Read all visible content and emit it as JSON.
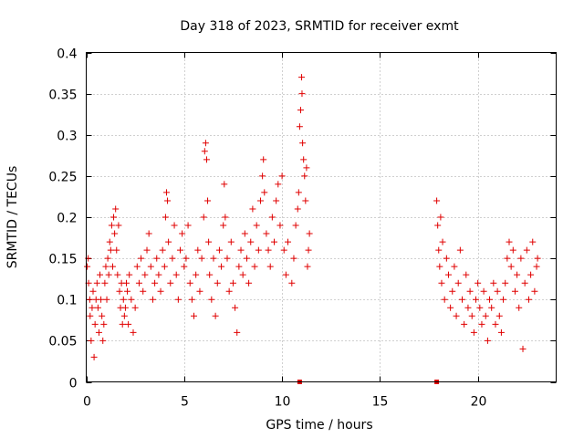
{
  "chart_data": {
    "type": "scatter",
    "title": "Day 318 of 2023, SRMTID for receiver exmt",
    "xlabel": "GPS time / hours",
    "ylabel": "SRMTID / TECUs",
    "xlim": [
      0,
      24
    ],
    "ylim": [
      0,
      0.4
    ],
    "x_ticks": [
      0,
      5,
      10,
      15,
      20
    ],
    "x_tick_labels": [
      "0",
      "5",
      "10",
      "15",
      "20"
    ],
    "y_ticks": [
      0,
      0.05,
      0.1,
      0.15,
      0.2,
      0.25,
      0.3,
      0.35,
      0.4
    ],
    "y_tick_labels": [
      "0",
      "0.05",
      "0.1",
      "0.15",
      "0.2",
      "0.25",
      "0.3",
      "0.35",
      "0.4"
    ],
    "grid": true,
    "marker": "+",
    "marker_color": "#e00000",
    "series": [
      {
        "name": "SRMTID",
        "marker": "+",
        "points": [
          [
            0.05,
            0.14
          ],
          [
            0.1,
            0.15
          ],
          [
            0.12,
            0.12
          ],
          [
            0.18,
            0.1
          ],
          [
            0.2,
            0.08
          ],
          [
            0.25,
            0.05
          ],
          [
            0.3,
            0.09
          ],
          [
            0.35,
            0.11
          ],
          [
            0.4,
            0.03
          ],
          [
            0.45,
            0.07
          ],
          [
            0.5,
            0.1
          ],
          [
            0.55,
            0.12
          ],
          [
            0.6,
            0.09
          ],
          [
            0.65,
            0.06
          ],
          [
            0.7,
            0.13
          ],
          [
            0.75,
            0.1
          ],
          [
            0.8,
            0.08
          ],
          [
            0.85,
            0.05
          ],
          [
            0.9,
            0.07
          ],
          [
            0.95,
            0.12
          ],
          [
            1.0,
            0.14
          ],
          [
            1.05,
            0.1
          ],
          [
            1.1,
            0.15
          ],
          [
            1.15,
            0.13
          ],
          [
            1.2,
            0.17
          ],
          [
            1.25,
            0.16
          ],
          [
            1.3,
            0.19
          ],
          [
            1.35,
            0.14
          ],
          [
            1.4,
            0.2
          ],
          [
            1.45,
            0.18
          ],
          [
            1.5,
            0.21
          ],
          [
            1.55,
            0.16
          ],
          [
            1.6,
            0.13
          ],
          [
            1.65,
            0.19
          ],
          [
            1.7,
            0.11
          ],
          [
            1.75,
            0.09
          ],
          [
            1.8,
            0.12
          ],
          [
            1.85,
            0.07
          ],
          [
            1.9,
            0.1
          ],
          [
            1.95,
            0.08
          ],
          [
            2.0,
            0.09
          ],
          [
            2.05,
            0.12
          ],
          [
            2.1,
            0.11
          ],
          [
            2.15,
            0.07
          ],
          [
            2.2,
            0.13
          ],
          [
            2.3,
            0.1
          ],
          [
            2.4,
            0.06
          ],
          [
            2.5,
            0.09
          ],
          [
            2.6,
            0.14
          ],
          [
            2.7,
            0.12
          ],
          [
            2.8,
            0.15
          ],
          [
            2.9,
            0.11
          ],
          [
            3.0,
            0.13
          ],
          [
            3.1,
            0.16
          ],
          [
            3.2,
            0.18
          ],
          [
            3.3,
            0.14
          ],
          [
            3.4,
            0.1
          ],
          [
            3.5,
            0.12
          ],
          [
            3.6,
            0.15
          ],
          [
            3.7,
            0.13
          ],
          [
            3.8,
            0.11
          ],
          [
            3.9,
            0.16
          ],
          [
            4.0,
            0.14
          ],
          [
            4.05,
            0.2
          ],
          [
            4.1,
            0.23
          ],
          [
            4.15,
            0.22
          ],
          [
            4.2,
            0.17
          ],
          [
            4.3,
            0.12
          ],
          [
            4.4,
            0.15
          ],
          [
            4.5,
            0.19
          ],
          [
            4.6,
            0.13
          ],
          [
            4.7,
            0.1
          ],
          [
            4.8,
            0.16
          ],
          [
            4.9,
            0.18
          ],
          [
            5.0,
            0.14
          ],
          [
            5.1,
            0.15
          ],
          [
            5.2,
            0.19
          ],
          [
            5.3,
            0.12
          ],
          [
            5.4,
            0.1
          ],
          [
            5.5,
            0.08
          ],
          [
            5.6,
            0.13
          ],
          [
            5.7,
            0.16
          ],
          [
            5.8,
            0.11
          ],
          [
            5.9,
            0.15
          ],
          [
            6.0,
            0.2
          ],
          [
            6.05,
            0.28
          ],
          [
            6.1,
            0.29
          ],
          [
            6.15,
            0.27
          ],
          [
            6.2,
            0.22
          ],
          [
            6.25,
            0.17
          ],
          [
            6.3,
            0.13
          ],
          [
            6.4,
            0.1
          ],
          [
            6.5,
            0.15
          ],
          [
            6.6,
            0.08
          ],
          [
            6.7,
            0.12
          ],
          [
            6.8,
            0.16
          ],
          [
            6.9,
            0.14
          ],
          [
            7.0,
            0.19
          ],
          [
            7.05,
            0.24
          ],
          [
            7.1,
            0.2
          ],
          [
            7.2,
            0.15
          ],
          [
            7.3,
            0.11
          ],
          [
            7.4,
            0.17
          ],
          [
            7.5,
            0.12
          ],
          [
            7.6,
            0.09
          ],
          [
            7.7,
            0.06
          ],
          [
            7.8,
            0.14
          ],
          [
            7.9,
            0.16
          ],
          [
            8.0,
            0.13
          ],
          [
            8.1,
            0.18
          ],
          [
            8.2,
            0.15
          ],
          [
            8.3,
            0.12
          ],
          [
            8.4,
            0.17
          ],
          [
            8.5,
            0.21
          ],
          [
            8.6,
            0.14
          ],
          [
            8.7,
            0.19
          ],
          [
            8.8,
            0.16
          ],
          [
            8.9,
            0.22
          ],
          [
            9.0,
            0.25
          ],
          [
            9.05,
            0.27
          ],
          [
            9.1,
            0.23
          ],
          [
            9.2,
            0.18
          ],
          [
            9.3,
            0.16
          ],
          [
            9.4,
            0.14
          ],
          [
            9.5,
            0.2
          ],
          [
            9.6,
            0.17
          ],
          [
            9.7,
            0.22
          ],
          [
            9.8,
            0.24
          ],
          [
            9.9,
            0.19
          ],
          [
            10.0,
            0.25
          ],
          [
            10.1,
            0.16
          ],
          [
            10.2,
            0.13
          ],
          [
            10.3,
            0.17
          ],
          [
            10.5,
            0.12
          ],
          [
            10.6,
            0.15
          ],
          [
            10.7,
            0.19
          ],
          [
            10.8,
            0.21
          ],
          [
            10.85,
            0.23
          ],
          [
            10.9,
            0.31
          ],
          [
            10.95,
            0.33
          ],
          [
            11.0,
            0.37
          ],
          [
            11.02,
            0.35
          ],
          [
            11.05,
            0.29
          ],
          [
            11.1,
            0.27
          ],
          [
            11.15,
            0.25
          ],
          [
            11.2,
            0.22
          ],
          [
            11.25,
            0.26
          ],
          [
            11.3,
            0.14
          ],
          [
            11.35,
            0.16
          ],
          [
            11.4,
            0.18
          ],
          [
            17.9,
            0.22
          ],
          [
            17.95,
            0.19
          ],
          [
            18.0,
            0.16
          ],
          [
            18.05,
            0.14
          ],
          [
            18.1,
            0.2
          ],
          [
            18.15,
            0.12
          ],
          [
            18.2,
            0.17
          ],
          [
            18.3,
            0.1
          ],
          [
            18.4,
            0.15
          ],
          [
            18.5,
            0.13
          ],
          [
            18.6,
            0.09
          ],
          [
            18.7,
            0.11
          ],
          [
            18.8,
            0.14
          ],
          [
            18.9,
            0.08
          ],
          [
            19.0,
            0.12
          ],
          [
            19.1,
            0.16
          ],
          [
            19.2,
            0.1
          ],
          [
            19.3,
            0.07
          ],
          [
            19.4,
            0.13
          ],
          [
            19.5,
            0.09
          ],
          [
            19.6,
            0.11
          ],
          [
            19.7,
            0.08
          ],
          [
            19.8,
            0.06
          ],
          [
            19.9,
            0.1
          ],
          [
            20.0,
            0.12
          ],
          [
            20.1,
            0.09
          ],
          [
            20.2,
            0.07
          ],
          [
            20.3,
            0.11
          ],
          [
            20.4,
            0.08
          ],
          [
            20.5,
            0.05
          ],
          [
            20.6,
            0.1
          ],
          [
            20.7,
            0.09
          ],
          [
            20.8,
            0.12
          ],
          [
            20.9,
            0.07
          ],
          [
            21.0,
            0.11
          ],
          [
            21.1,
            0.08
          ],
          [
            21.2,
            0.06
          ],
          [
            21.3,
            0.1
          ],
          [
            21.4,
            0.12
          ],
          [
            21.5,
            0.15
          ],
          [
            21.6,
            0.17
          ],
          [
            21.7,
            0.14
          ],
          [
            21.8,
            0.16
          ],
          [
            21.9,
            0.11
          ],
          [
            22.0,
            0.13
          ],
          [
            22.1,
            0.09
          ],
          [
            22.2,
            0.15
          ],
          [
            22.3,
            0.04
          ],
          [
            22.4,
            0.12
          ],
          [
            22.5,
            0.16
          ],
          [
            22.6,
            0.1
          ],
          [
            22.7,
            0.13
          ],
          [
            22.8,
            0.17
          ],
          [
            22.9,
            0.11
          ],
          [
            23.0,
            0.14
          ],
          [
            23.05,
            0.15
          ]
        ]
      }
    ],
    "gap_markers": [
      {
        "x": 10.9,
        "y": 0
      },
      {
        "x": 17.9,
        "y": 0
      }
    ]
  }
}
